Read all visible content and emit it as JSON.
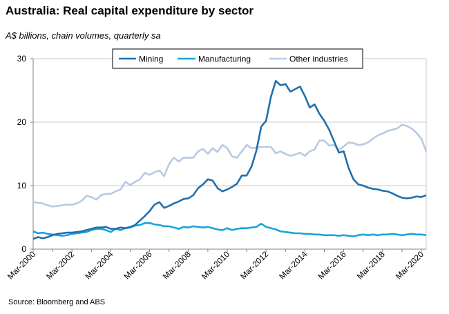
{
  "header": {
    "title": "Australia: Real capital expenditure by sector",
    "subtitle": "A$ billions, chain volumes, quarterly sa"
  },
  "footer": {
    "source": "Source: Bloomberg and ABS"
  },
  "colors": {
    "mining": "#1f6fad",
    "manufacturing": "#1aa3d9",
    "other": "#b8c9e3",
    "grid": "#c8c8c8",
    "axis": "#808080"
  },
  "chart_data": {
    "type": "line",
    "ylim": [
      0,
      30
    ],
    "y_ticks": [
      0,
      10,
      20,
      30
    ],
    "x_tick_labels": [
      "Mar-2000",
      "Mar-2002",
      "Mar-2004",
      "Mar-2006",
      "Mar-2008",
      "Mar-2010",
      "Mar-2012",
      "Mar-2014",
      "Mar-2016",
      "Mar-2018",
      "Mar-2020"
    ],
    "x_start": "Mar-2000",
    "x_end": "Jun-2020",
    "grid": true,
    "legend": "top",
    "series": [
      {
        "name": "Mining",
        "color": "#1f6fad",
        "points": [
          [
            "Mar-2000",
            1.6
          ],
          [
            "Jun-2000",
            1.9
          ],
          [
            "Sep-2000",
            1.7
          ],
          [
            "Dec-2000",
            1.9
          ],
          [
            "Mar-2001",
            2.2
          ],
          [
            "Jun-2001",
            2.4
          ],
          [
            "Sep-2001",
            2.5
          ],
          [
            "Dec-2001",
            2.6
          ],
          [
            "Mar-2002",
            2.6
          ],
          [
            "Jun-2002",
            2.7
          ],
          [
            "Sep-2002",
            2.8
          ],
          [
            "Dec-2002",
            3.0
          ],
          [
            "Mar-2003",
            3.2
          ],
          [
            "Jun-2003",
            3.4
          ],
          [
            "Sep-2003",
            3.4
          ],
          [
            "Dec-2003",
            3.5
          ],
          [
            "Mar-2004",
            3.2
          ],
          [
            "Jun-2004",
            3.2
          ],
          [
            "Sep-2004",
            3.4
          ],
          [
            "Dec-2004",
            3.3
          ],
          [
            "Mar-2005",
            3.5
          ],
          [
            "Jun-2005",
            3.8
          ],
          [
            "Sep-2005",
            4.5
          ],
          [
            "Dec-2005",
            5.2
          ],
          [
            "Mar-2006",
            6.0
          ],
          [
            "Jun-2006",
            7.0
          ],
          [
            "Sep-2006",
            7.4
          ],
          [
            "Dec-2006",
            6.5
          ],
          [
            "Mar-2007",
            6.8
          ],
          [
            "Jun-2007",
            7.2
          ],
          [
            "Sep-2007",
            7.5
          ],
          [
            "Dec-2007",
            7.9
          ],
          [
            "Mar-2008",
            8.0
          ],
          [
            "Jun-2008",
            8.5
          ],
          [
            "Sep-2008",
            9.6
          ],
          [
            "Dec-2008",
            10.2
          ],
          [
            "Mar-2009",
            11.0
          ],
          [
            "Jun-2009",
            10.8
          ],
          [
            "Sep-2009",
            9.6
          ],
          [
            "Dec-2009",
            9.1
          ],
          [
            "Mar-2010",
            9.4
          ],
          [
            "Jun-2010",
            9.8
          ],
          [
            "Sep-2010",
            10.3
          ],
          [
            "Dec-2010",
            11.6
          ],
          [
            "Mar-2011",
            11.6
          ],
          [
            "Jun-2011",
            13.0
          ],
          [
            "Sep-2011",
            15.5
          ],
          [
            "Dec-2011",
            19.3
          ],
          [
            "Mar-2012",
            20.2
          ],
          [
            "Jun-2012",
            24.0
          ],
          [
            "Sep-2012",
            26.5
          ],
          [
            "Dec-2012",
            25.8
          ],
          [
            "Mar-2013",
            26.0
          ],
          [
            "Jun-2013",
            24.8
          ],
          [
            "Sep-2013",
            25.2
          ],
          [
            "Dec-2013",
            25.6
          ],
          [
            "Mar-2014",
            24.1
          ],
          [
            "Jun-2014",
            22.3
          ],
          [
            "Sep-2014",
            22.8
          ],
          [
            "Dec-2014",
            21.3
          ],
          [
            "Mar-2015",
            20.2
          ],
          [
            "Jun-2015",
            18.8
          ],
          [
            "Sep-2015",
            17.0
          ],
          [
            "Dec-2015",
            15.2
          ],
          [
            "Mar-2016",
            15.4
          ],
          [
            "Jun-2016",
            12.8
          ],
          [
            "Sep-2016",
            11.0
          ],
          [
            "Dec-2016",
            10.2
          ],
          [
            "Mar-2017",
            10.0
          ],
          [
            "Jun-2017",
            9.7
          ],
          [
            "Sep-2017",
            9.5
          ],
          [
            "Dec-2017",
            9.4
          ],
          [
            "Mar-2018",
            9.2
          ],
          [
            "Jun-2018",
            9.1
          ],
          [
            "Sep-2018",
            8.8
          ],
          [
            "Dec-2018",
            8.4
          ],
          [
            "Mar-2019",
            8.1
          ],
          [
            "Jun-2019",
            8.0
          ],
          [
            "Sep-2019",
            8.1
          ],
          [
            "Dec-2019",
            8.3
          ],
          [
            "Mar-2020",
            8.2
          ],
          [
            "Jun-2020",
            8.5
          ]
        ]
      },
      {
        "name": "Manufacturing",
        "color": "#1aa3d9",
        "points": [
          [
            "Mar-2000",
            2.8
          ],
          [
            "Jun-2000",
            2.5
          ],
          [
            "Sep-2000",
            2.6
          ],
          [
            "Dec-2000",
            2.4
          ],
          [
            "Mar-2001",
            2.3
          ],
          [
            "Jun-2001",
            2.2
          ],
          [
            "Sep-2001",
            2.1
          ],
          [
            "Dec-2001",
            2.2
          ],
          [
            "Mar-2002",
            2.4
          ],
          [
            "Jun-2002",
            2.5
          ],
          [
            "Sep-2002",
            2.6
          ],
          [
            "Dec-2002",
            2.7
          ],
          [
            "Mar-2003",
            3.0
          ],
          [
            "Jun-2003",
            3.2
          ],
          [
            "Sep-2003",
            3.2
          ],
          [
            "Dec-2003",
            3.0
          ],
          [
            "Mar-2004",
            2.7
          ],
          [
            "Jun-2004",
            3.2
          ],
          [
            "Sep-2004",
            3.0
          ],
          [
            "Dec-2004",
            3.3
          ],
          [
            "Mar-2005",
            3.4
          ],
          [
            "Jun-2005",
            3.7
          ],
          [
            "Sep-2005",
            3.8
          ],
          [
            "Dec-2005",
            4.1
          ],
          [
            "Mar-2006",
            4.1
          ],
          [
            "Jun-2006",
            3.9
          ],
          [
            "Sep-2006",
            3.8
          ],
          [
            "Dec-2006",
            3.6
          ],
          [
            "Mar-2007",
            3.6
          ],
          [
            "Jun-2007",
            3.4
          ],
          [
            "Sep-2007",
            3.2
          ],
          [
            "Dec-2007",
            3.5
          ],
          [
            "Mar-2008",
            3.4
          ],
          [
            "Jun-2008",
            3.6
          ],
          [
            "Sep-2008",
            3.5
          ],
          [
            "Dec-2008",
            3.4
          ],
          [
            "Mar-2009",
            3.5
          ],
          [
            "Jun-2009",
            3.3
          ],
          [
            "Sep-2009",
            3.1
          ],
          [
            "Dec-2009",
            3.0
          ],
          [
            "Mar-2010",
            3.3
          ],
          [
            "Jun-2010",
            3.0
          ],
          [
            "Sep-2010",
            3.2
          ],
          [
            "Dec-2010",
            3.3
          ],
          [
            "Mar-2011",
            3.3
          ],
          [
            "Jun-2011",
            3.4
          ],
          [
            "Sep-2011",
            3.5
          ],
          [
            "Dec-2011",
            4.0
          ],
          [
            "Mar-2012",
            3.5
          ],
          [
            "Jun-2012",
            3.3
          ],
          [
            "Sep-2012",
            3.1
          ],
          [
            "Dec-2012",
            2.8
          ],
          [
            "Mar-2013",
            2.7
          ],
          [
            "Jun-2013",
            2.6
          ],
          [
            "Sep-2013",
            2.5
          ],
          [
            "Dec-2013",
            2.5
          ],
          [
            "Mar-2014",
            2.4
          ],
          [
            "Jun-2014",
            2.4
          ],
          [
            "Sep-2014",
            2.3
          ],
          [
            "Dec-2014",
            2.3
          ],
          [
            "Mar-2015",
            2.2
          ],
          [
            "Jun-2015",
            2.2
          ],
          [
            "Sep-2015",
            2.2
          ],
          [
            "Dec-2015",
            2.1
          ],
          [
            "Mar-2016",
            2.2
          ],
          [
            "Jun-2016",
            2.1
          ],
          [
            "Sep-2016",
            2.0
          ],
          [
            "Dec-2016",
            2.2
          ],
          [
            "Mar-2017",
            2.3
          ],
          [
            "Jun-2017",
            2.2
          ],
          [
            "Sep-2017",
            2.3
          ],
          [
            "Dec-2017",
            2.2
          ],
          [
            "Mar-2018",
            2.3
          ],
          [
            "Jun-2018",
            2.3
          ],
          [
            "Sep-2018",
            2.4
          ],
          [
            "Dec-2018",
            2.3
          ],
          [
            "Mar-2019",
            2.2
          ],
          [
            "Jun-2019",
            2.3
          ],
          [
            "Sep-2019",
            2.4
          ],
          [
            "Dec-2019",
            2.3
          ],
          [
            "Mar-2020",
            2.3
          ],
          [
            "Jun-2020",
            2.2
          ]
        ]
      },
      {
        "name": "Other industries",
        "color": "#b8c9e3",
        "points": [
          [
            "Mar-2000",
            7.4
          ],
          [
            "Jun-2000",
            7.3
          ],
          [
            "Sep-2000",
            7.2
          ],
          [
            "Dec-2000",
            6.9
          ],
          [
            "Mar-2001",
            6.7
          ],
          [
            "Jun-2001",
            6.8
          ],
          [
            "Sep-2001",
            6.9
          ],
          [
            "Dec-2001",
            7.0
          ],
          [
            "Mar-2002",
            7.0
          ],
          [
            "Jun-2002",
            7.2
          ],
          [
            "Sep-2002",
            7.6
          ],
          [
            "Dec-2002",
            8.4
          ],
          [
            "Mar-2003",
            8.2
          ],
          [
            "Jun-2003",
            7.8
          ],
          [
            "Sep-2003",
            8.5
          ],
          [
            "Dec-2003",
            8.7
          ],
          [
            "Mar-2004",
            8.7
          ],
          [
            "Jun-2004",
            9.1
          ],
          [
            "Sep-2004",
            9.4
          ],
          [
            "Dec-2004",
            10.6
          ],
          [
            "Mar-2005",
            10.1
          ],
          [
            "Jun-2005",
            10.6
          ],
          [
            "Sep-2005",
            11.0
          ],
          [
            "Dec-2005",
            12.0
          ],
          [
            "Mar-2006",
            11.7
          ],
          [
            "Jun-2006",
            12.1
          ],
          [
            "Sep-2006",
            12.4
          ],
          [
            "Dec-2006",
            11.5
          ],
          [
            "Mar-2007",
            13.4
          ],
          [
            "Jun-2007",
            14.4
          ],
          [
            "Sep-2007",
            13.8
          ],
          [
            "Dec-2007",
            14.4
          ],
          [
            "Mar-2008",
            14.4
          ],
          [
            "Jun-2008",
            14.4
          ],
          [
            "Sep-2008",
            15.4
          ],
          [
            "Dec-2008",
            15.8
          ],
          [
            "Mar-2009",
            15.0
          ],
          [
            "Jun-2009",
            15.9
          ],
          [
            "Sep-2009",
            15.3
          ],
          [
            "Dec-2009",
            16.4
          ],
          [
            "Mar-2010",
            15.9
          ],
          [
            "Jun-2010",
            14.6
          ],
          [
            "Sep-2010",
            14.4
          ],
          [
            "Dec-2010",
            15.4
          ],
          [
            "Mar-2011",
            16.4
          ],
          [
            "Jun-2011",
            15.9
          ],
          [
            "Sep-2011",
            16.0
          ],
          [
            "Dec-2011",
            16.1
          ],
          [
            "Mar-2012",
            16.1
          ],
          [
            "Jun-2012",
            16.1
          ],
          [
            "Sep-2012",
            15.1
          ],
          [
            "Dec-2012",
            15.4
          ],
          [
            "Mar-2013",
            15.0
          ],
          [
            "Jun-2013",
            14.7
          ],
          [
            "Sep-2013",
            14.9
          ],
          [
            "Dec-2013",
            15.2
          ],
          [
            "Mar-2014",
            14.7
          ],
          [
            "Jun-2014",
            15.4
          ],
          [
            "Sep-2014",
            15.7
          ],
          [
            "Dec-2014",
            17.1
          ],
          [
            "Mar-2015",
            17.1
          ],
          [
            "Jun-2015",
            16.3
          ],
          [
            "Sep-2015",
            16.4
          ],
          [
            "Dec-2015",
            15.6
          ],
          [
            "Mar-2016",
            16.2
          ],
          [
            "Jun-2016",
            16.8
          ],
          [
            "Sep-2016",
            16.7
          ],
          [
            "Dec-2016",
            16.4
          ],
          [
            "Mar-2017",
            16.5
          ],
          [
            "Jun-2017",
            16.8
          ],
          [
            "Sep-2017",
            17.4
          ],
          [
            "Dec-2017",
            17.9
          ],
          [
            "Mar-2018",
            18.2
          ],
          [
            "Jun-2018",
            18.6
          ],
          [
            "Sep-2018",
            18.8
          ],
          [
            "Dec-2018",
            19.0
          ],
          [
            "Mar-2019",
            19.6
          ],
          [
            "Jun-2019",
            19.4
          ],
          [
            "Sep-2019",
            19.0
          ],
          [
            "Dec-2019",
            18.3
          ],
          [
            "Mar-2020",
            17.4
          ],
          [
            "Jun-2020",
            15.4
          ]
        ]
      }
    ]
  }
}
